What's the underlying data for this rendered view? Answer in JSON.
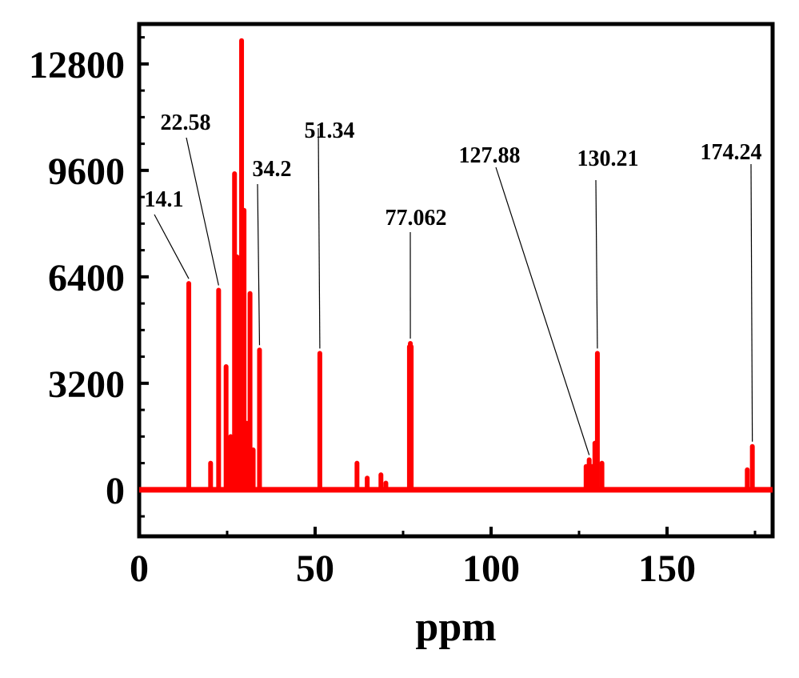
{
  "chart_data": {
    "type": "line",
    "title": "",
    "xlabel": "ppm",
    "ylabel": "",
    "xlim": [
      0,
      180
    ],
    "ylim": [
      -1400,
      14000
    ],
    "grid": false,
    "legend": "none",
    "line_color": "#ff0000",
    "x_ticks": [
      {
        "value": 0,
        "label": "0"
      },
      {
        "value": 50,
        "label": "50"
      },
      {
        "value": 100,
        "label": "100"
      },
      {
        "value": 150,
        "label": "150"
      }
    ],
    "y_ticks": [
      {
        "value": 0,
        "label": "0"
      },
      {
        "value": 3200,
        "label": "3200"
      },
      {
        "value": 6400,
        "label": "6400"
      },
      {
        "value": 9600,
        "label": "9600"
      },
      {
        "value": 12800,
        "label": "12800"
      }
    ],
    "peaks": [
      {
        "x": 14.1,
        "y": 6200
      },
      {
        "x": 20.3,
        "y": 800
      },
      {
        "x": 22.58,
        "y": 6000
      },
      {
        "x": 24.7,
        "y": 3700
      },
      {
        "x": 26.0,
        "y": 1600
      },
      {
        "x": 27.1,
        "y": 9500
      },
      {
        "x": 27.8,
        "y": 7000
      },
      {
        "x": 28.5,
        "y": 6000
      },
      {
        "x": 29.1,
        "y": 13500
      },
      {
        "x": 29.8,
        "y": 8400
      },
      {
        "x": 30.6,
        "y": 2000
      },
      {
        "x": 31.5,
        "y": 5900
      },
      {
        "x": 32.4,
        "y": 1200
      },
      {
        "x": 34.2,
        "y": 4200
      },
      {
        "x": 51.34,
        "y": 4100
      },
      {
        "x": 61.9,
        "y": 800
      },
      {
        "x": 64.8,
        "y": 350
      },
      {
        "x": 68.7,
        "y": 450
      },
      {
        "x": 70.1,
        "y": 200
      },
      {
        "x": 76.8,
        "y": 4300
      },
      {
        "x": 77.062,
        "y": 4400
      },
      {
        "x": 77.3,
        "y": 4300
      },
      {
        "x": 127.0,
        "y": 700
      },
      {
        "x": 127.88,
        "y": 900
      },
      {
        "x": 128.7,
        "y": 700
      },
      {
        "x": 129.5,
        "y": 1400
      },
      {
        "x": 130.21,
        "y": 4100
      },
      {
        "x": 131.5,
        "y": 800
      },
      {
        "x": 172.8,
        "y": 600
      },
      {
        "x": 174.24,
        "y": 1300
      }
    ],
    "annotations": [
      {
        "label": "14.1",
        "x": 14.1,
        "y": 6200
      },
      {
        "label": "22.58",
        "x": 22.58,
        "y": 6000
      },
      {
        "label": "34.2",
        "x": 34.2,
        "y": 4200
      },
      {
        "label": "51.34",
        "x": 51.34,
        "y": 4100
      },
      {
        "label": "77.062",
        "x": 77.062,
        "y": 4400
      },
      {
        "label": "127.88",
        "x": 127.88,
        "y": 900
      },
      {
        "label": "130.21",
        "x": 130.21,
        "y": 4100
      },
      {
        "label": "174.24",
        "x": 174.24,
        "y": 1300
      }
    ]
  }
}
